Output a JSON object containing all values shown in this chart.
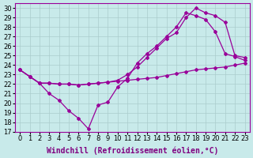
{
  "xlabel": "Windchill (Refroidissement éolien,°C)",
  "bg_color": "#c8eaea",
  "line_color": "#990099",
  "xlim": [
    -0.5,
    23.5
  ],
  "ylim": [
    17,
    30.5
  ],
  "xticks": [
    0,
    1,
    2,
    3,
    4,
    5,
    6,
    7,
    8,
    9,
    10,
    11,
    12,
    13,
    14,
    15,
    16,
    17,
    18,
    19,
    20,
    21,
    22,
    23
  ],
  "yticks": [
    17,
    18,
    19,
    20,
    21,
    22,
    23,
    24,
    25,
    26,
    27,
    28,
    29,
    30
  ],
  "line1_x": [
    0,
    1,
    2,
    3,
    4,
    5,
    6,
    7,
    8,
    9,
    10,
    11,
    12,
    13,
    14,
    15,
    16,
    17,
    18,
    19,
    20,
    21,
    22,
    23
  ],
  "line1_y": [
    23.5,
    22.8,
    22.1,
    22.1,
    22.0,
    22.0,
    21.9,
    22.0,
    22.1,
    22.2,
    22.3,
    22.4,
    22.5,
    22.6,
    22.7,
    22.9,
    23.1,
    23.3,
    23.5,
    23.6,
    23.7,
    23.8,
    24.0,
    24.2
  ],
  "line2_x": [
    0,
    1,
    2,
    3,
    4,
    5,
    6,
    7,
    8,
    9,
    10,
    11,
    12,
    13,
    14,
    15,
    16,
    17,
    18,
    19,
    20,
    21,
    22,
    23
  ],
  "line2_y": [
    23.5,
    22.8,
    22.1,
    21.0,
    20.3,
    19.2,
    18.4,
    17.3,
    19.8,
    20.1,
    21.7,
    22.6,
    24.2,
    25.2,
    26.0,
    27.0,
    28.0,
    29.5,
    29.2,
    28.8,
    27.5,
    25.2,
    24.9,
    24.5
  ],
  "line3_x": [
    0,
    1,
    2,
    3,
    4,
    5,
    6,
    7,
    8,
    9,
    10,
    11,
    12,
    13,
    14,
    15,
    16,
    17,
    18,
    19,
    20,
    21,
    22,
    23
  ],
  "line3_y": [
    23.5,
    22.8,
    22.1,
    22.1,
    22.0,
    22.0,
    21.9,
    22.0,
    22.1,
    22.2,
    22.4,
    23.0,
    23.8,
    24.8,
    25.8,
    26.8,
    27.4,
    29.0,
    30.0,
    29.5,
    29.2,
    28.5,
    25.0,
    24.8
  ],
  "gridcolor": "#aacccc",
  "xlabel_fontsize": 7,
  "tick_fontsize": 6
}
